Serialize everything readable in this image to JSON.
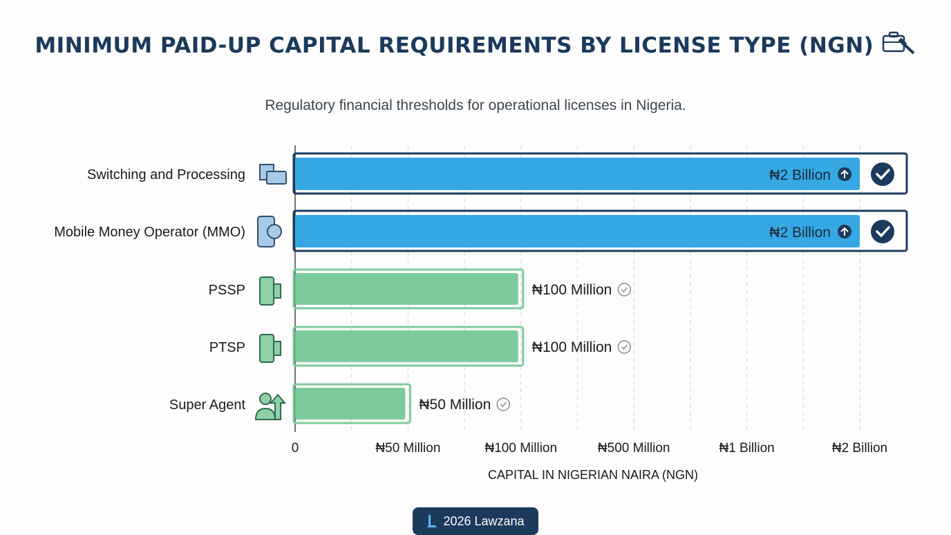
{
  "chart_data": {
    "type": "bar",
    "orientation": "horizontal",
    "title": "MINIMUM PAID-UP CAPITAL REQUIREMENTS BY LICENSE TYPE (NGN)",
    "subtitle": "Regulatory financial thresholds for operational licenses in Nigeria.",
    "categories": [
      "Switching and Processing",
      "Mobile Money Operator (MMO)",
      "PSSP",
      "PTSP",
      "Super Agent"
    ],
    "values": [
      2000000000,
      2000000000,
      100000000,
      100000000,
      50000000
    ],
    "data_labels": [
      "₦2 Billion",
      "₦2 Billion",
      "₦100 Million",
      "₦100 Million",
      "₦50 Million"
    ],
    "highlighted": [
      true,
      true,
      false,
      false,
      false
    ],
    "icons": [
      "chip-card-icon",
      "mobile-money-icon",
      "pos-terminal-icon",
      "pos-receipt-terminal-icon",
      "agent-growth-icon"
    ],
    "xlabel": "CAPITAL IN NIGERIAN NAIRA (NGN)",
    "x_ticks": [
      0,
      50000000,
      100000000,
      500000000,
      1000000000,
      2000000000
    ],
    "x_tick_labels": [
      "0",
      "₦50 Million",
      "₦100 Million",
      "₦500 Million",
      "₦1 Billion",
      "₦2 Billion"
    ],
    "x_scale": "non-linear (equally spaced ticks)",
    "xlim": [
      0,
      2000000000
    ],
    "grid": "vertical dashed",
    "colors": {
      "highlight": "#35a8e4",
      "standard": "#7dcb9c",
      "accent": "#1b3a5c"
    }
  },
  "footer": {
    "badge": "2026 Lawzana"
  }
}
